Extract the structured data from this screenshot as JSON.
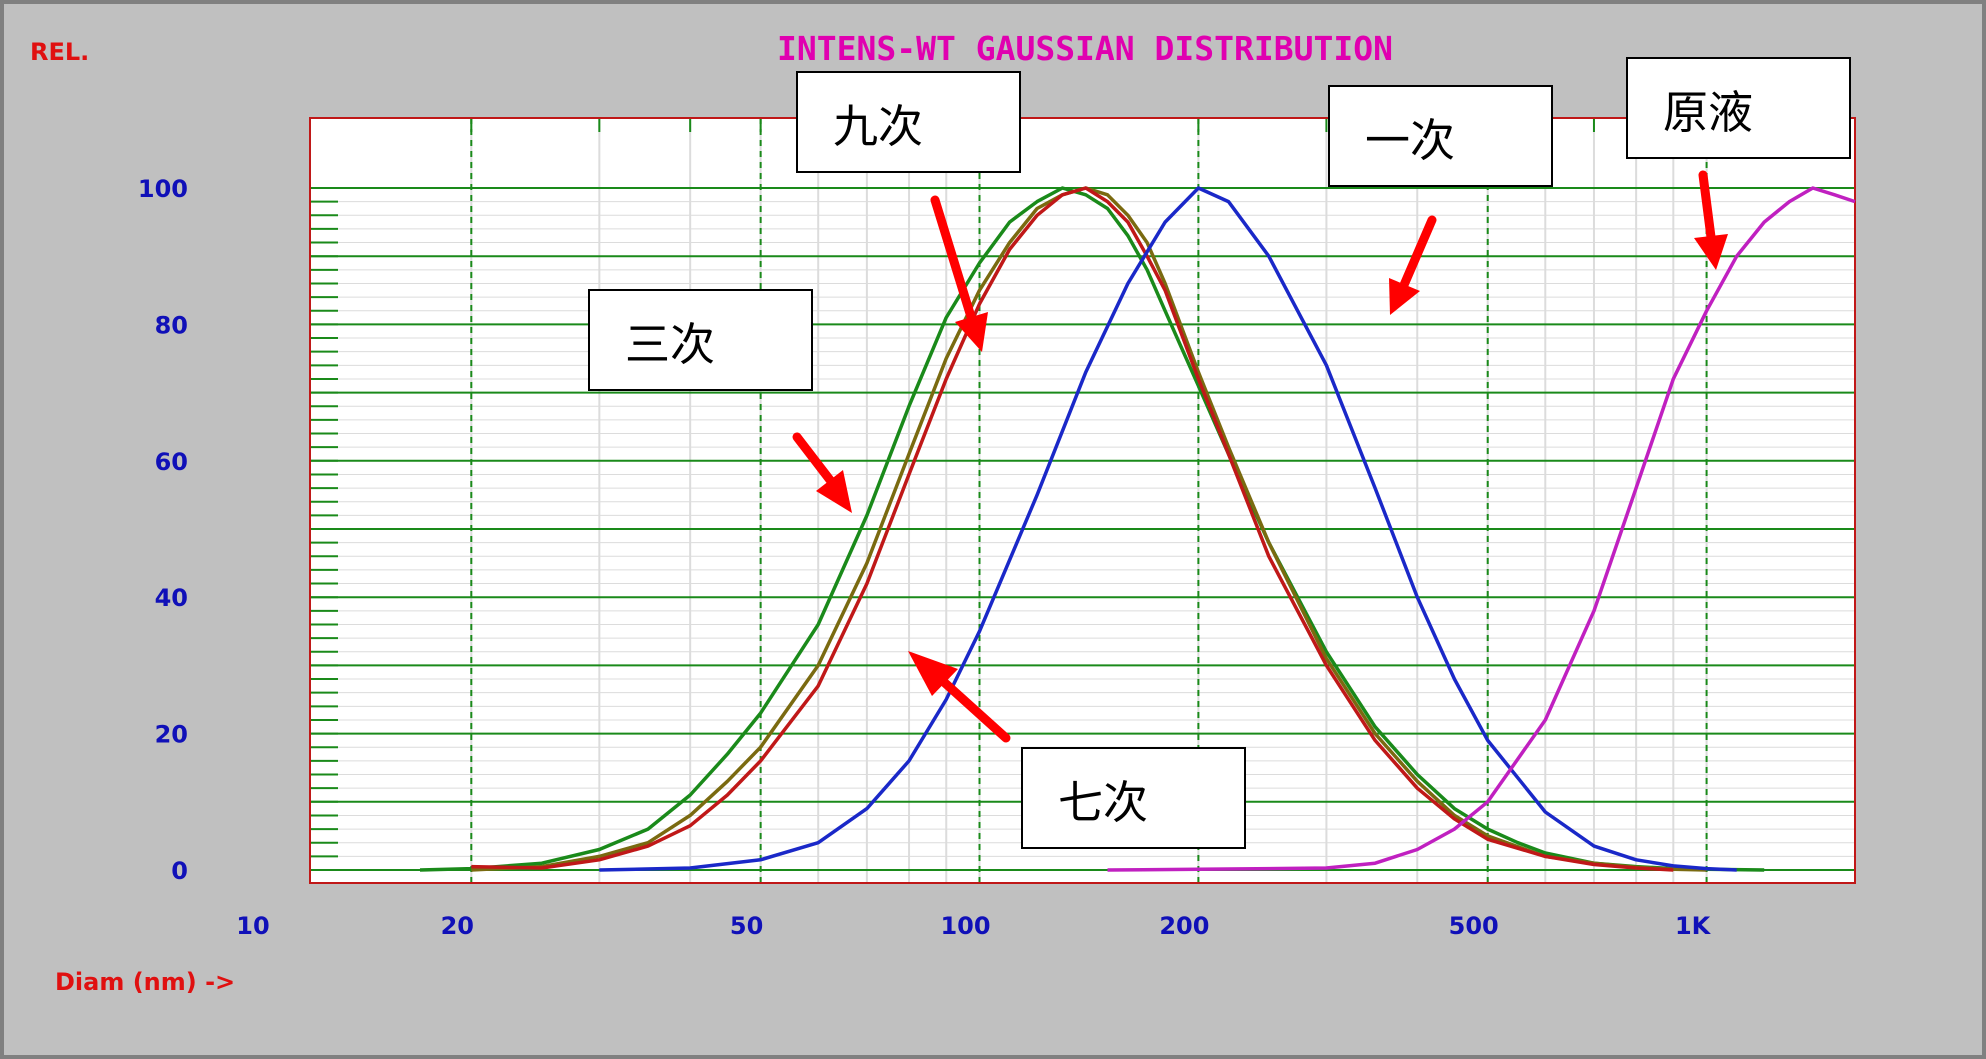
{
  "chart_data": {
    "type": "line",
    "title": "INTENS-WT GAUSSIAN DISTRIBUTION",
    "ylabel": "REL.",
    "xlabel": "Diam (nm) ->",
    "x_scale": "log",
    "xlim": [
      12,
      1600
    ],
    "ylim": [
      0,
      100
    ],
    "x_ticks": [
      {
        "value": 10,
        "label": "10"
      },
      {
        "value": 20,
        "label": "20"
      },
      {
        "value": 50,
        "label": "50"
      },
      {
        "value": 100,
        "label": "100"
      },
      {
        "value": 200,
        "label": "200"
      },
      {
        "value": 500,
        "label": "500"
      },
      {
        "value": 1000,
        "label": "1K"
      }
    ],
    "y_ticks": [
      {
        "value": 0,
        "label": "0"
      },
      {
        "value": 20,
        "label": "20"
      },
      {
        "value": 40,
        "label": "40"
      },
      {
        "value": 60,
        "label": "60"
      },
      {
        "value": 80,
        "label": "80"
      },
      {
        "value": 100,
        "label": "100"
      }
    ],
    "grid": true,
    "series": [
      {
        "color": "#1a8a1a",
        "x": [
          17,
          20,
          25,
          30,
          35,
          40,
          45,
          50,
          60,
          70,
          80,
          90,
          100,
          110,
          120,
          130,
          140,
          150,
          160,
          170,
          180,
          200,
          220,
          250,
          300,
          350,
          400,
          450,
          500,
          550,
          600,
          700,
          800,
          900,
          1000,
          1200
        ],
        "y": [
          0,
          0.2,
          1,
          3,
          6,
          11,
          17,
          23,
          36,
          52,
          68,
          81,
          89,
          95,
          98,
          100,
          99,
          97,
          93,
          88,
          82,
          71,
          61,
          48,
          32,
          21,
          14,
          9,
          6,
          4,
          2.5,
          1,
          0.5,
          0.2,
          0.1,
          0
        ]
      },
      {
        "color": "#7a6a10",
        "x": [
          20,
          25,
          30,
          35,
          40,
          45,
          50,
          60,
          70,
          80,
          90,
          100,
          110,
          120,
          130,
          140,
          150,
          160,
          170,
          180,
          200,
          220,
          250,
          300,
          350,
          400,
          450,
          500,
          600,
          700,
          800,
          900,
          1000
        ],
        "y": [
          0,
          0.5,
          2,
          4,
          8,
          13,
          18,
          30,
          45,
          61,
          75,
          85,
          92,
          97,
          99,
          100,
          99,
          96,
          92,
          86,
          73,
          62,
          48,
          31,
          20,
          13,
          8,
          5,
          2,
          1,
          0.4,
          0.1,
          0
        ]
      },
      {
        "color": "#c01818",
        "x": [
          20,
          25,
          30,
          35,
          40,
          45,
          50,
          60,
          70,
          80,
          90,
          100,
          110,
          120,
          130,
          140,
          150,
          160,
          170,
          180,
          200,
          220,
          250,
          300,
          350,
          400,
          450,
          500,
          600,
          700,
          800,
          900
        ],
        "y": [
          0.5,
          0.3,
          1.5,
          3.5,
          6.5,
          11,
          16,
          27,
          42,
          58,
          72,
          83,
          91,
          96,
          99,
          100,
          98,
          95,
          90,
          85,
          72,
          61,
          46,
          30,
          19,
          12,
          7.5,
          4.5,
          2,
          0.8,
          0.3,
          0
        ]
      },
      {
        "color": "#1a28c8",
        "x": [
          30,
          40,
          50,
          60,
          70,
          80,
          90,
          100,
          120,
          140,
          160,
          180,
          200,
          220,
          250,
          300,
          350,
          400,
          450,
          500,
          600,
          700,
          800,
          900,
          1000,
          1100
        ],
        "y": [
          0,
          0.3,
          1.5,
          4,
          9,
          16,
          25,
          35,
          55,
          73,
          86,
          95,
          100,
          98,
          90,
          74,
          56,
          40,
          28,
          19,
          8.5,
          3.5,
          1.5,
          0.6,
          0.2,
          0
        ]
      },
      {
        "color": "#c020c0",
        "x": [
          150,
          200,
          300,
          350,
          400,
          450,
          500,
          600,
          700,
          800,
          900,
          1000,
          1100,
          1200,
          1300,
          1400,
          1500,
          1600
        ],
        "y": [
          0,
          0.1,
          0.3,
          1,
          3,
          6,
          10,
          22,
          38,
          56,
          72,
          82,
          90,
          95,
          98,
          100,
          99,
          98
        ]
      }
    ]
  },
  "annotations": [
    {
      "label": "九次",
      "color": "#ff0000"
    },
    {
      "label": "一次",
      "color": "#ff0000"
    },
    {
      "label": "原液",
      "color": "#ff0000"
    },
    {
      "label": "三次",
      "color": "#ff0000"
    },
    {
      "label": "七次",
      "color": "#ff0000"
    }
  ]
}
